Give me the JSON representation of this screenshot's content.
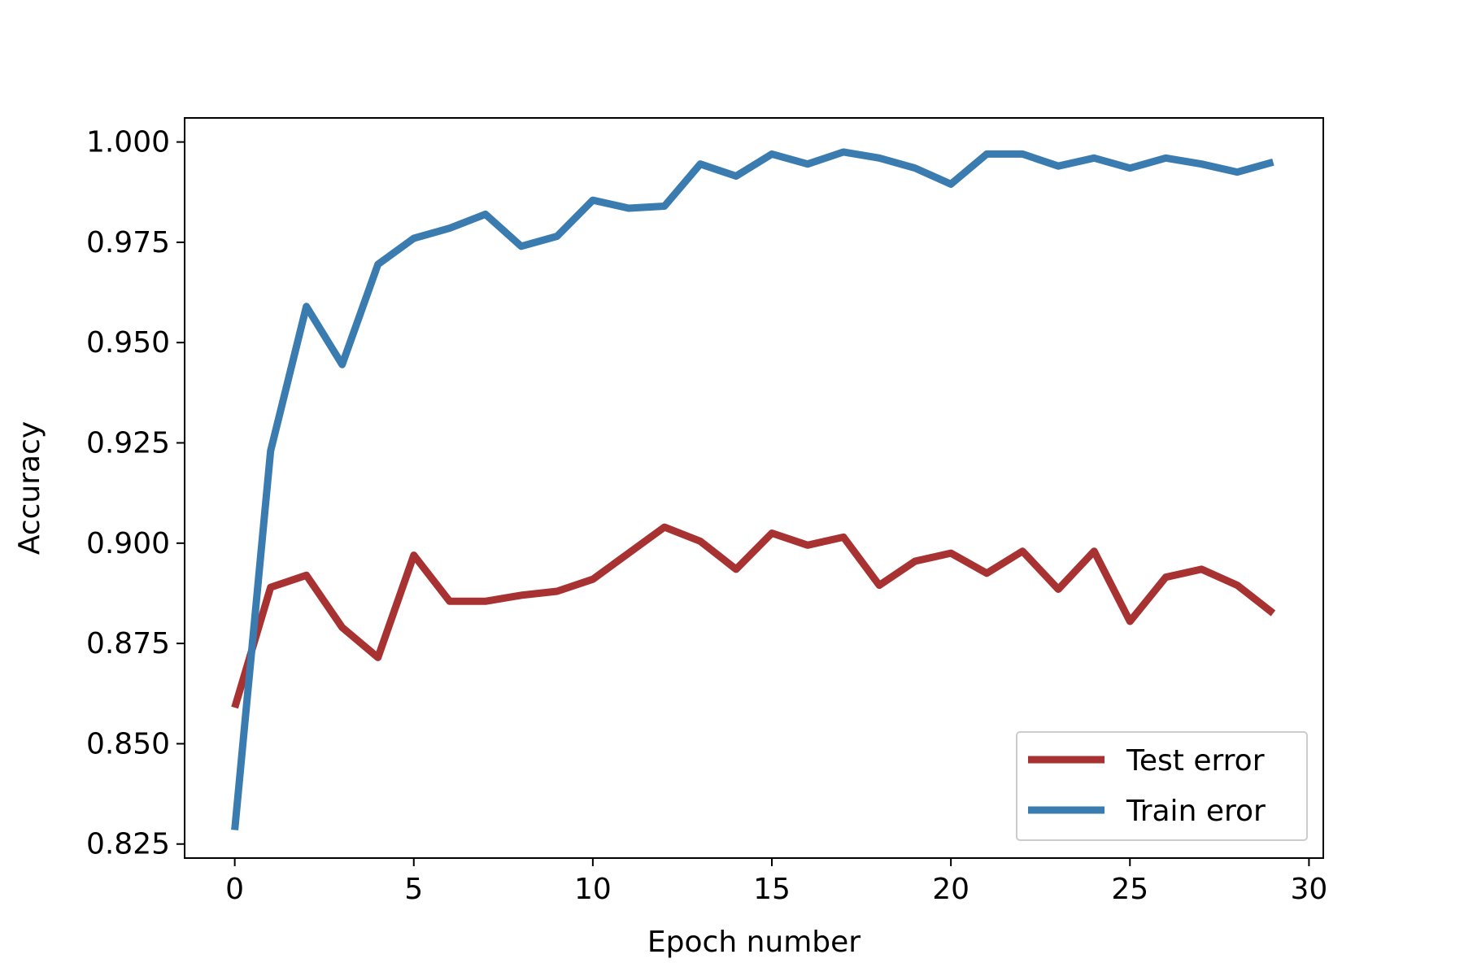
{
  "colors": {
    "test": "#a83232",
    "train": "#3a7bb0"
  },
  "chart_data": {
    "type": "line",
    "title": "",
    "xlabel": "Epoch number",
    "ylabel": "Accuracy",
    "xlim": [
      -1.4,
      30.4
    ],
    "ylim": [
      0.8215,
      1.006
    ],
    "xticks": [
      0,
      5,
      10,
      15,
      20,
      25,
      30
    ],
    "xtick_labels": [
      "0",
      "5",
      "10",
      "15",
      "20",
      "25",
      "30"
    ],
    "yticks": [
      0.825,
      0.85,
      0.875,
      0.9,
      0.925,
      0.95,
      0.975,
      1.0
    ],
    "ytick_labels": [
      "0.825",
      "0.850",
      "0.875",
      "0.900",
      "0.925",
      "0.950",
      "0.975",
      "1.000"
    ],
    "grid": false,
    "legend_position": "lower-right",
    "x": [
      0,
      1,
      2,
      3,
      4,
      5,
      6,
      7,
      8,
      9,
      10,
      11,
      12,
      13,
      14,
      15,
      16,
      17,
      18,
      19,
      20,
      21,
      22,
      23,
      24,
      25,
      26,
      27,
      28,
      29
    ],
    "series": [
      {
        "name": "Test error",
        "color": "#a83232",
        "values": [
          0.859,
          0.889,
          0.892,
          0.879,
          0.8715,
          0.897,
          0.8855,
          0.8855,
          0.887,
          0.888,
          0.891,
          0.8975,
          0.904,
          0.9005,
          0.8935,
          0.9025,
          0.8995,
          0.9015,
          0.8895,
          0.8955,
          0.8975,
          0.8925,
          0.898,
          0.8885,
          0.898,
          0.8805,
          0.8915,
          0.8935,
          0.8895,
          0.8825
        ]
      },
      {
        "name": "Train eror",
        "color": "#3a7bb0",
        "values": [
          0.8285,
          0.923,
          0.959,
          0.9445,
          0.9695,
          0.976,
          0.9785,
          0.982,
          0.974,
          0.9765,
          0.9855,
          0.9835,
          0.984,
          0.9945,
          0.9915,
          0.997,
          0.9945,
          0.9975,
          0.996,
          0.9935,
          0.9895,
          0.997,
          0.997,
          0.994,
          0.996,
          0.9935,
          0.996,
          0.9945,
          0.9925,
          0.995
        ]
      }
    ]
  }
}
